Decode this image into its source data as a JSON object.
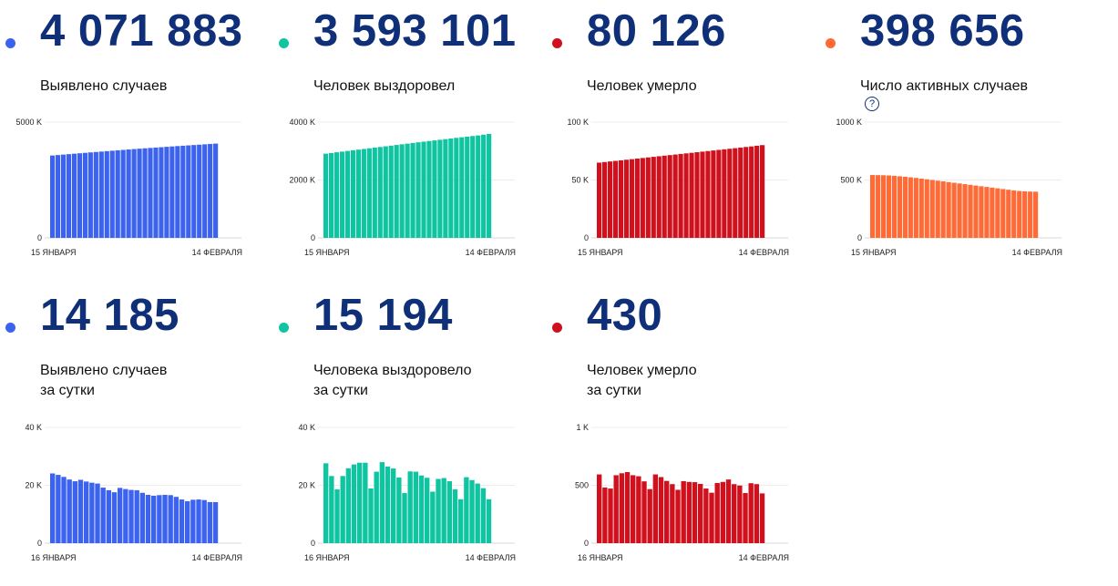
{
  "cards": [
    {
      "value": "4 071 883",
      "label_lines": [
        "Выявлено случаев"
      ],
      "help_icon": false,
      "color": "#3c63f0",
      "chart_data": {
        "type": "bar",
        "x_start_label": "15 ЯНВАРЯ",
        "x_end_label": "14 ФЕВРАЛЯ",
        "yticks": [
          {
            "v": 0,
            "label": "0"
          },
          {
            "v": 5000000,
            "label": "5000 K"
          }
        ],
        "ylim": [
          0,
          5000000
        ],
        "values": [
          3558000,
          3577000,
          3597000,
          3616000,
          3635000,
          3654000,
          3673000,
          3692000,
          3710000,
          3728000,
          3746000,
          3764000,
          3782000,
          3800000,
          3818000,
          3836000,
          3853000,
          3869000,
          3885000,
          3901000,
          3917000,
          3933000,
          3949000,
          3965000,
          3980000,
          3995000,
          4010000,
          4025000,
          4040000,
          4057000,
          4071883
        ]
      }
    },
    {
      "value": "3 593 101",
      "label_lines": [
        "Человек выздоровел"
      ],
      "help_icon": false,
      "color": "#0fc4a0",
      "chart_data": {
        "type": "bar",
        "x_start_label": "15 ЯНВАРЯ",
        "x_end_label": "14 ФЕВРАЛЯ",
        "yticks": [
          {
            "v": 0,
            "label": "0"
          },
          {
            "v": 2000000,
            "label": "2000 K"
          },
          {
            "v": 4000000,
            "label": "4000 K"
          }
        ],
        "ylim": [
          0,
          4000000
        ],
        "values": [
          2910000,
          2933000,
          2957000,
          2980000,
          3003000,
          3026000,
          3049000,
          3072000,
          3095000,
          3118000,
          3141000,
          3164000,
          3187000,
          3210000,
          3233000,
          3256000,
          3279000,
          3302000,
          3324000,
          3346000,
          3368000,
          3390000,
          3412000,
          3434000,
          3456000,
          3477000,
          3498000,
          3519000,
          3540000,
          3566000,
          3593101
        ]
      }
    },
    {
      "value": "80 126",
      "label_lines": [
        "Человек умерло"
      ],
      "help_icon": false,
      "color": "#d0101c",
      "chart_data": {
        "type": "bar",
        "x_start_label": "15 ЯНВАРЯ",
        "x_end_label": "14 ФЕВРАЛЯ",
        "yticks": [
          {
            "v": 0,
            "label": "0"
          },
          {
            "v": 50000,
            "label": "50 K"
          },
          {
            "v": 100000,
            "label": "100 K"
          }
        ],
        "ylim": [
          0,
          100000
        ],
        "values": [
          65000,
          65500,
          66000,
          66500,
          67000,
          67500,
          68000,
          68500,
          69000,
          69500,
          70000,
          70500,
          71000,
          71500,
          72000,
          72500,
          73000,
          73500,
          74000,
          74500,
          75000,
          75500,
          76000,
          76500,
          77000,
          77500,
          78000,
          78500,
          79000,
          79600,
          80126
        ]
      }
    },
    {
      "value": "398 656",
      "label_lines": [
        "Число активных случаев"
      ],
      "help_icon": true,
      "color": "#ff6a36",
      "chart_data": {
        "type": "bar",
        "x_start_label": "15 ЯНВАРЯ",
        "x_end_label": "14 ФЕВРАЛЯ",
        "yticks": [
          {
            "v": 0,
            "label": "0"
          },
          {
            "v": 500000,
            "label": "500 K"
          },
          {
            "v": 1000000,
            "label": "1000 K"
          }
        ],
        "ylim": [
          0,
          1000000
        ],
        "values": [
          543000,
          542000,
          541000,
          539000,
          536000,
          532000,
          528000,
          523000,
          518000,
          512000,
          506000,
          500000,
          494000,
          488000,
          482000,
          476000,
          470000,
          464000,
          458000,
          452000,
          446000,
          440000,
          434000,
          428000,
          422000,
          416000,
          410000,
          405000,
          402000,
          400000,
          398656
        ]
      }
    },
    {
      "value": "14 185",
      "label_lines": [
        "Выявлено случаев",
        "за сутки"
      ],
      "help_icon": false,
      "color": "#3c63f0",
      "chart_data": {
        "type": "bar",
        "x_start_label": "16 ЯНВАРЯ",
        "x_end_label": "14 ФЕВРАЛЯ",
        "yticks": [
          {
            "v": 0,
            "label": "0"
          },
          {
            "v": 20000,
            "label": "20 K"
          },
          {
            "v": 40000,
            "label": "40 K"
          }
        ],
        "ylim": [
          0,
          40000
        ],
        "values": [
          24100,
          23600,
          22900,
          22000,
          21400,
          21900,
          21300,
          20900,
          20600,
          19200,
          18300,
          17600,
          19100,
          18700,
          18400,
          18300,
          17400,
          16700,
          16400,
          16600,
          16700,
          16600,
          16000,
          15100,
          14500,
          15000,
          15100,
          14900,
          14200,
          14185
        ]
      }
    },
    {
      "value": "15 194",
      "label_lines": [
        "Человека выздоровело",
        "за сутки"
      ],
      "help_icon": false,
      "color": "#0fc4a0",
      "chart_data": {
        "type": "bar",
        "x_start_label": "16 ЯНВАРЯ",
        "x_end_label": "14 ФЕВРАЛЯ",
        "yticks": [
          {
            "v": 0,
            "label": "0"
          },
          {
            "v": 20000,
            "label": "20 K"
          },
          {
            "v": 40000,
            "label": "40 K"
          }
        ],
        "ylim": [
          0,
          40000
        ],
        "values": [
          27600,
          23200,
          18600,
          23200,
          25900,
          27200,
          27800,
          27800,
          18900,
          24700,
          28000,
          26500,
          25800,
          22700,
          17300,
          24800,
          24700,
          23400,
          22600,
          17800,
          22200,
          22500,
          21400,
          18600,
          15194,
          22800,
          21800,
          20600,
          19000,
          15194
        ]
      }
    },
    {
      "value": "430",
      "label_lines": [
        "Человек умерло",
        "за сутки"
      ],
      "help_icon": false,
      "color": "#d0101c",
      "chart_data": {
        "type": "bar",
        "x_start_label": "16 ЯНВАРЯ",
        "x_end_label": "14 ФЕВРАЛЯ",
        "yticks": [
          {
            "v": 0,
            "label": "0"
          },
          {
            "v": 500,
            "label": "500"
          },
          {
            "v": 1000,
            "label": "1 K"
          }
        ],
        "ylim": [
          0,
          1000
        ],
        "values": [
          594,
          481,
          472,
          587,
          604,
          614,
          587,
          578,
          534,
          467,
          594,
          571,
          538,
          510,
          461,
          536,
          529,
          527,
          512,
          472,
          436,
          520,
          529,
          550,
          510,
          498,
          433,
          518,
          510,
          430
        ]
      }
    }
  ]
}
